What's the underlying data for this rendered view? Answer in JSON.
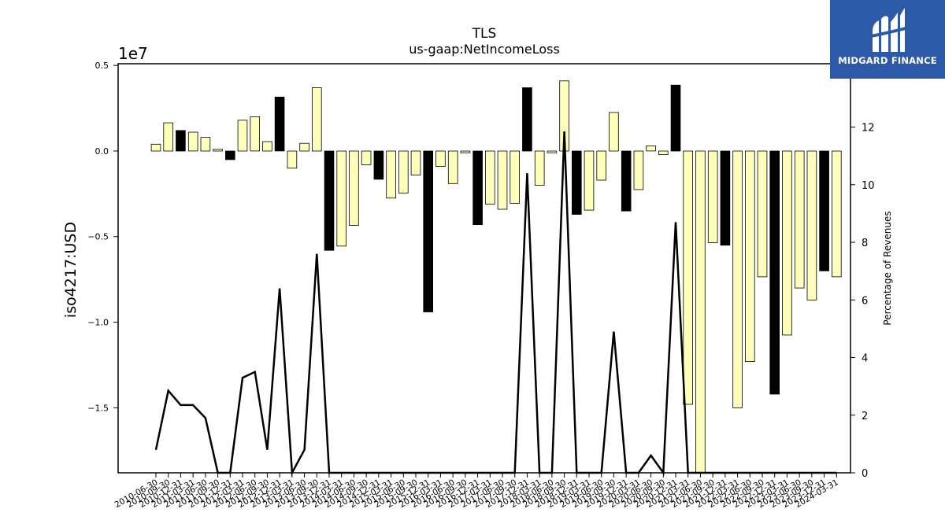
{
  "brand": {
    "name": "MIDGARD FINANCE",
    "logo_icon": "midgard-m-logo-icon",
    "background": "#2c5aa8"
  },
  "chart_data": {
    "type": "bar",
    "title": "TLS",
    "subtitle": "us-gaap:NetIncomeLoss",
    "ylabel": "iso4217:USD",
    "y_offset_label": "1e7",
    "y2label": "Percentage of Revenues",
    "ylim": [
      -18800000,
      5100000
    ],
    "y2lim": [
      0,
      14.2
    ],
    "yticks": [
      0.5,
      0.0,
      -0.5,
      -1.0,
      -1.5
    ],
    "y2ticks": [
      0,
      2,
      4,
      6,
      8,
      10,
      12
    ],
    "colors": {
      "quarter": "#ffffbb",
      "annual": "#000000",
      "line": "#000000"
    },
    "categories": [
      "2010-06-30",
      "2010-09-30",
      "2010-12-31",
      "2011-03-31",
      "2011-06-30",
      "2011-09-30",
      "2011-12-31",
      "2012-03-31",
      "2012-06-30",
      "2012-09-30",
      "2012-12-31",
      "2013-03-31",
      "2013-06-30",
      "2013-09-30",
      "2013-12-31",
      "2014-03-31",
      "2014-06-30",
      "2014-09-30",
      "2014-12-31",
      "2015-03-31",
      "2015-06-30",
      "2015-09-30",
      "2015-12-31",
      "2016-03-31",
      "2016-06-30",
      "2016-09-30",
      "2016-12-31",
      "2017-03-31",
      "2017-06-30",
      "2017-09-30",
      "2017-12-31",
      "2018-03-31",
      "2018-06-30",
      "2018-09-30",
      "2018-12-31",
      "2019-03-31",
      "2019-06-30",
      "2019-09-30",
      "2019-12-31",
      "2020-03-31",
      "2020-06-30",
      "2020-09-30",
      "2020-12-31",
      "2021-03-31",
      "2021-06-30",
      "2021-09-30",
      "2021-12-31",
      "2022-03-31",
      "2022-06-30",
      "2022-09-30",
      "2022-12-31",
      "2023-03-31",
      "2023-06-30",
      "2023-09-30",
      "2023-12-31",
      "2024-03-31"
    ],
    "values": [
      400000,
      1650000,
      1200000,
      1100000,
      800000,
      100000,
      -500000,
      1800000,
      2000000,
      550000,
      3150000,
      -1000000,
      450000,
      3700000,
      -5800000,
      -5550000,
      -4350000,
      -800000,
      -1650000,
      -2750000,
      -2450000,
      -1400000,
      -9400000,
      -900000,
      -1900000,
      -100000,
      -4300000,
      -3100000,
      -3400000,
      -3050000,
      3700000,
      -2000000,
      -100000,
      4100000,
      -3700000,
      -3450000,
      -1700000,
      2250000,
      -3500000,
      -2250000,
      300000,
      -200000,
      3850000,
      -14800000,
      -18800000,
      -5350000,
      -5500000,
      -15000000,
      -12300000,
      -7350000,
      -14200000,
      -10750000,
      -8000000,
      -8700000,
      -7000000,
      -7350000
    ],
    "annual": [
      false,
      false,
      true,
      false,
      false,
      false,
      true,
      false,
      false,
      false,
      true,
      false,
      false,
      false,
      true,
      false,
      false,
      false,
      true,
      false,
      false,
      false,
      true,
      false,
      false,
      false,
      true,
      false,
      false,
      false,
      true,
      false,
      false,
      false,
      true,
      false,
      false,
      false,
      true,
      false,
      false,
      false,
      true,
      false,
      false,
      false,
      true,
      false,
      false,
      false,
      true,
      false,
      false,
      false,
      true,
      false
    ],
    "line_pct": [
      0.8,
      2.85,
      2.35,
      2.35,
      1.9,
      0,
      0,
      3.3,
      3.5,
      0.8,
      6.4,
      0,
      0.8,
      7.6,
      0,
      0,
      0,
      0,
      0,
      0,
      0,
      0,
      0,
      0,
      0,
      0,
      0,
      0,
      0,
      0,
      10.4,
      0,
      0,
      11.85,
      0,
      0,
      0,
      4.9,
      0,
      0,
      0.6,
      0,
      8.7,
      0,
      0,
      0,
      0,
      0,
      0,
      0,
      0,
      0,
      0,
      0,
      0,
      0
    ]
  }
}
